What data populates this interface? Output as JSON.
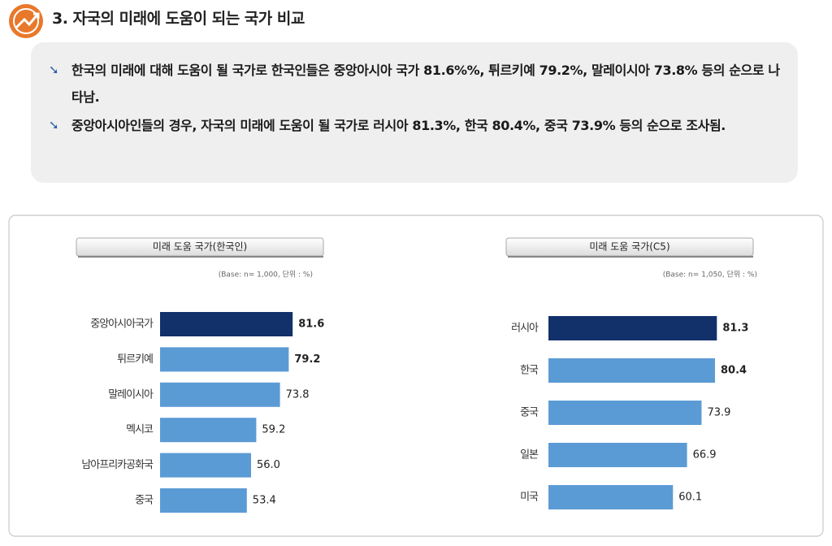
{
  "header": {
    "title": "3. 자국의 미래에 도움이 되는 국가 비교"
  },
  "summary": [
    "한국의 미래에 대해 도움이 될 국가로 한국인들은 중앙아시아 국가 81.6%%, 튀르키예 79.2%, 말레이시아 73.8% 등의 순으로 나타남.",
    "중앙아시아인들의 경우, 자국의 미래에 도움이 될 국가로 러시아 81.3%, 한국 80.4%, 중국 73.9% 등의 순으로 조사됨."
  ],
  "chart_data": [
    {
      "type": "bar",
      "orientation": "horizontal",
      "title": "미래 도움 국가(한국인)",
      "subtitle": "(Base: n= 1,000, 단위 : %)",
      "categories": [
        "중앙아시아국가",
        "튀르키예",
        "말레이시아",
        "멕시코",
        "남아프리카공화국",
        "중국"
      ],
      "values": [
        81.6,
        79.2,
        73.8,
        59.2,
        56.0,
        53.4
      ],
      "value_labels": [
        "81.6",
        "79.2",
        "73.8",
        "59.2",
        "56.0",
        "53.4"
      ],
      "colors": [
        "#12306a",
        "#5b9bd5",
        "#5b9bd5",
        "#5b9bd5",
        "#5b9bd5",
        "#5b9bd5"
      ],
      "label_bold": [
        true,
        true,
        false,
        false,
        false,
        false
      ]
    },
    {
      "type": "bar",
      "orientation": "horizontal",
      "title": "미래 도움 국가(C5)",
      "subtitle": "(Base: n= 1,050, 단위 : %)",
      "categories": [
        "러시아",
        "한국",
        "중국",
        "일본",
        "미국"
      ],
      "values": [
        81.3,
        80.4,
        73.9,
        66.9,
        60.1
      ],
      "value_labels": [
        "81.3",
        "80.4",
        "73.9",
        "66.9",
        "60.1"
      ],
      "colors": [
        "#12306a",
        "#5b9bd5",
        "#5b9bd5",
        "#5b9bd5",
        "#5b9bd5"
      ],
      "label_bold": [
        true,
        true,
        false,
        false,
        false
      ]
    }
  ]
}
